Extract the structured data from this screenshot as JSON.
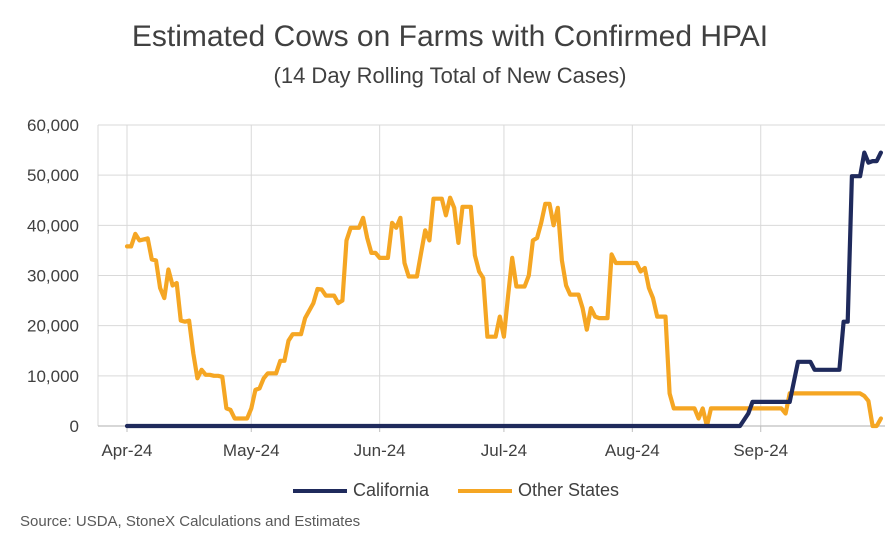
{
  "chart_data": {
    "type": "line",
    "title": "Estimated Cows on Farms with Confirmed HPAI",
    "subtitle": "(14 Day Rolling Total of New Cases)",
    "source": "Source: USDA, StoneX Calculations and Estimates",
    "xlabel": "",
    "ylabel": "",
    "x_ticks": [
      "Apr-24",
      "May-24",
      "Jun-24",
      "Jul-24",
      "Aug-24",
      "Sep-24"
    ],
    "y_ticks": [
      "0",
      "10,000",
      "20,000",
      "30,000",
      "40,000",
      "50,000",
      "60,000"
    ],
    "ylim": [
      0,
      60000
    ],
    "xlim": [
      "2024-03-25",
      "2024-10-01"
    ],
    "grid": true,
    "legend_position": "bottom",
    "colors": {
      "california": "#1f2a5c",
      "other_states": "#f5a623",
      "grid": "#d9d9d9",
      "axis": "#bfbfbf"
    },
    "series": [
      {
        "name": "California",
        "color": "#1f2a5c",
        "points": [
          [
            "2024-04-01",
            0
          ],
          [
            "2024-08-27",
            0
          ],
          [
            "2024-08-29",
            2500
          ],
          [
            "2024-08-30",
            4800
          ],
          [
            "2024-09-08",
            4800
          ],
          [
            "2024-09-10",
            12800
          ],
          [
            "2024-09-13",
            12800
          ],
          [
            "2024-09-14",
            11200
          ],
          [
            "2024-09-20",
            11200
          ],
          [
            "2024-09-21",
            20800
          ],
          [
            "2024-09-22",
            20800
          ],
          [
            "2024-09-23",
            49800
          ],
          [
            "2024-09-25",
            49800
          ],
          [
            "2024-09-26",
            54500
          ],
          [
            "2024-09-27",
            52500
          ],
          [
            "2024-09-28",
            52800
          ],
          [
            "2024-09-29",
            52800
          ],
          [
            "2024-09-30",
            54500
          ]
        ]
      },
      {
        "name": "Other States",
        "color": "#f5a623",
        "points": [
          [
            "2024-04-01",
            35800
          ],
          [
            "2024-04-02",
            35800
          ],
          [
            "2024-04-03",
            38300
          ],
          [
            "2024-04-04",
            37000
          ],
          [
            "2024-04-05",
            37200
          ],
          [
            "2024-04-06",
            37400
          ],
          [
            "2024-04-07",
            33200
          ],
          [
            "2024-04-08",
            33000
          ],
          [
            "2024-04-09",
            27500
          ],
          [
            "2024-04-10",
            25500
          ],
          [
            "2024-04-11",
            31200
          ],
          [
            "2024-04-12",
            28000
          ],
          [
            "2024-04-13",
            28500
          ],
          [
            "2024-04-14",
            21000
          ],
          [
            "2024-04-15",
            20800
          ],
          [
            "2024-04-16",
            21000
          ],
          [
            "2024-04-17",
            14500
          ],
          [
            "2024-04-18",
            9500
          ],
          [
            "2024-04-19",
            11200
          ],
          [
            "2024-04-20",
            10200
          ],
          [
            "2024-04-21",
            10200
          ],
          [
            "2024-04-22",
            10000
          ],
          [
            "2024-04-23",
            10000
          ],
          [
            "2024-04-24",
            9800
          ],
          [
            "2024-04-25",
            3500
          ],
          [
            "2024-04-26",
            3200
          ],
          [
            "2024-04-27",
            1500
          ],
          [
            "2024-04-28",
            1500
          ],
          [
            "2024-04-30",
            1500
          ],
          [
            "2024-05-01",
            3500
          ],
          [
            "2024-05-02",
            7200
          ],
          [
            "2024-05-03",
            7500
          ],
          [
            "2024-05-04",
            9500
          ],
          [
            "2024-05-05",
            10500
          ],
          [
            "2024-05-07",
            10500
          ],
          [
            "2024-05-08",
            13000
          ],
          [
            "2024-05-09",
            13000
          ],
          [
            "2024-05-10",
            17000
          ],
          [
            "2024-05-11",
            18300
          ],
          [
            "2024-05-13",
            18300
          ],
          [
            "2024-05-14",
            21500
          ],
          [
            "2024-05-16",
            24500
          ],
          [
            "2024-05-17",
            27300
          ],
          [
            "2024-05-18",
            27200
          ],
          [
            "2024-05-19",
            26000
          ],
          [
            "2024-05-21",
            26000
          ],
          [
            "2024-05-22",
            24500
          ],
          [
            "2024-05-23",
            25000
          ],
          [
            "2024-05-24",
            37000
          ],
          [
            "2024-05-25",
            39500
          ],
          [
            "2024-05-27",
            39500
          ],
          [
            "2024-05-28",
            41500
          ],
          [
            "2024-05-29",
            37500
          ],
          [
            "2024-05-30",
            34500
          ],
          [
            "2024-05-31",
            34500
          ],
          [
            "2024-06-01",
            33500
          ],
          [
            "2024-06-03",
            33500
          ],
          [
            "2024-06-04",
            40500
          ],
          [
            "2024-06-05",
            39500
          ],
          [
            "2024-06-06",
            41500
          ],
          [
            "2024-06-07",
            32500
          ],
          [
            "2024-06-08",
            29800
          ],
          [
            "2024-06-10",
            29800
          ],
          [
            "2024-06-11",
            34500
          ],
          [
            "2024-06-12",
            39000
          ],
          [
            "2024-06-13",
            37000
          ],
          [
            "2024-06-14",
            45300
          ],
          [
            "2024-06-16",
            45300
          ],
          [
            "2024-06-17",
            42000
          ],
          [
            "2024-06-18",
            45500
          ],
          [
            "2024-06-19",
            43500
          ],
          [
            "2024-06-20",
            36500
          ],
          [
            "2024-06-21",
            43700
          ],
          [
            "2024-06-23",
            43700
          ],
          [
            "2024-06-24",
            34000
          ],
          [
            "2024-06-25",
            30800
          ],
          [
            "2024-06-26",
            29500
          ],
          [
            "2024-06-27",
            17800
          ],
          [
            "2024-06-29",
            17800
          ],
          [
            "2024-06-30",
            21800
          ],
          [
            "2024-07-01",
            17800
          ],
          [
            "2024-07-02",
            26000
          ],
          [
            "2024-07-03",
            33500
          ],
          [
            "2024-07-04",
            27800
          ],
          [
            "2024-07-06",
            27800
          ],
          [
            "2024-07-07",
            30000
          ],
          [
            "2024-07-08",
            37000
          ],
          [
            "2024-07-09",
            37500
          ],
          [
            "2024-07-10",
            40500
          ],
          [
            "2024-07-11",
            44300
          ],
          [
            "2024-07-12",
            44300
          ],
          [
            "2024-07-13",
            40000
          ],
          [
            "2024-07-14",
            43500
          ],
          [
            "2024-07-15",
            33000
          ],
          [
            "2024-07-16",
            28000
          ],
          [
            "2024-07-17",
            26200
          ],
          [
            "2024-07-19",
            26200
          ],
          [
            "2024-07-20",
            23500
          ],
          [
            "2024-07-21",
            19200
          ],
          [
            "2024-07-22",
            23500
          ],
          [
            "2024-07-23",
            21800
          ],
          [
            "2024-07-24",
            21500
          ],
          [
            "2024-07-26",
            21500
          ],
          [
            "2024-07-27",
            34200
          ],
          [
            "2024-07-28",
            32500
          ],
          [
            "2024-08-02",
            32500
          ],
          [
            "2024-08-03",
            30800
          ],
          [
            "2024-08-04",
            31500
          ],
          [
            "2024-08-05",
            27500
          ],
          [
            "2024-08-06",
            25500
          ],
          [
            "2024-08-07",
            21800
          ],
          [
            "2024-08-09",
            21800
          ],
          [
            "2024-08-10",
            6500
          ],
          [
            "2024-08-11",
            3500
          ],
          [
            "2024-08-16",
            3500
          ],
          [
            "2024-08-17",
            1500
          ],
          [
            "2024-08-18",
            3500
          ],
          [
            "2024-08-19",
            0
          ],
          [
            "2024-08-20",
            3500
          ],
          [
            "2024-09-06",
            3500
          ],
          [
            "2024-09-07",
            2500
          ],
          [
            "2024-09-08",
            6500
          ],
          [
            "2024-09-25",
            6500
          ],
          [
            "2024-09-26",
            6000
          ],
          [
            "2024-09-27",
            5000
          ],
          [
            "2024-09-28",
            0
          ],
          [
            "2024-09-29",
            0
          ],
          [
            "2024-09-30",
            1500
          ]
        ]
      }
    ]
  }
}
